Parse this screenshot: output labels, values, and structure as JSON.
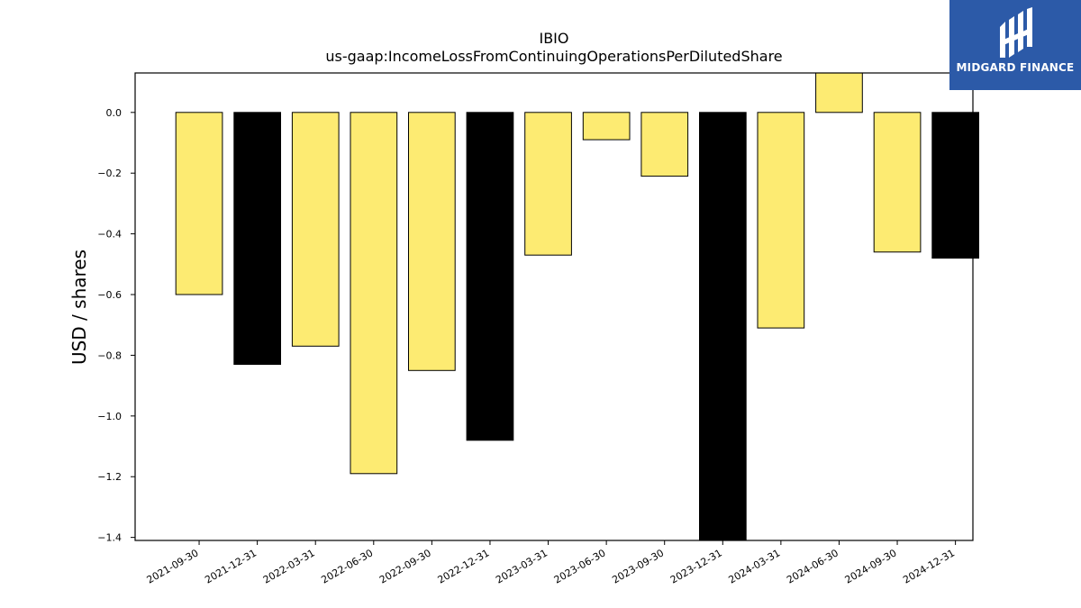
{
  "brand": {
    "name": "MIDGARD FINANCE",
    "bg_color": "#2c5aa8"
  },
  "chart_data": {
    "type": "bar",
    "title": "IBIO",
    "subtitle": "us-gaap:IncomeLossFromContinuingOperationsPerDilutedShare",
    "xlabel": "",
    "ylabel": "USD / shares",
    "ylim": [
      -1.41,
      0.13
    ],
    "yticks": [
      0.0,
      -0.2,
      -0.4,
      -0.6,
      -0.8,
      -1.0,
      -1.2,
      -1.4
    ],
    "ytick_labels": [
      "0.0",
      "−0.2",
      "−0.4",
      "−0.6",
      "−0.8",
      "−1.0",
      "−1.2",
      "−1.4"
    ],
    "categories": [
      "2021-09-30",
      "2021-12-31",
      "2022-03-31",
      "2022-06-30",
      "2022-09-30",
      "2022-12-31",
      "2023-03-31",
      "2023-06-30",
      "2023-09-30",
      "2023-12-31",
      "2024-03-31",
      "2024-06-30",
      "2024-09-30",
      "2024-12-31"
    ],
    "values": [
      -0.6,
      -0.83,
      -0.77,
      -1.19,
      -0.85,
      -1.08,
      -0.47,
      -0.09,
      -0.21,
      -1.45,
      -0.71,
      0.15,
      -0.46,
      -0.48
    ],
    "bar_colors": [
      "#fdeb72",
      "#000000",
      "#fdeb72",
      "#fdeb72",
      "#fdeb72",
      "#000000",
      "#fdeb72",
      "#fdeb72",
      "#fdeb72",
      "#000000",
      "#fdeb72",
      "#fdeb72",
      "#fdeb72",
      "#000000"
    ],
    "grid": false,
    "legend": "none"
  }
}
